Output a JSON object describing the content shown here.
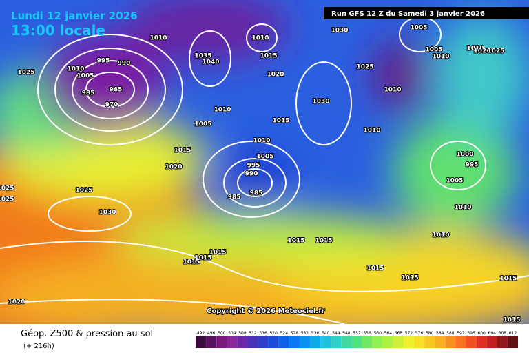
{
  "header": {
    "date": "Lundi 12 janvier 2026",
    "time": "13:00 locale",
    "run": "Run GFS 12 Z du Samedi 3 janvier 2026"
  },
  "copyright": "Copyright © 2026 Meteociel.fr",
  "legend": {
    "title": "Géop. Z500 & pression au sol",
    "lead": "(+ 216h)"
  },
  "colorbar": {
    "values": [
      492,
      496,
      500,
      504,
      508,
      512,
      516,
      520,
      524,
      528,
      532,
      536,
      540,
      544,
      548,
      552,
      556,
      560,
      564,
      568,
      572,
      576,
      580,
      584,
      588,
      592,
      596,
      600,
      604,
      608,
      612
    ],
    "colors": [
      "#3b0a3f",
      "#5a1060",
      "#7a1a7a",
      "#8a2a9a",
      "#6a2aa8",
      "#4b30b8",
      "#2c3ec8",
      "#1b4ed8",
      "#0b62e8",
      "#0a78f0",
      "#0a90f0",
      "#10a8e8",
      "#20c0e0",
      "#30d0c8",
      "#40d8a0",
      "#50e080",
      "#70e860",
      "#90f050",
      "#b0f040",
      "#d0f038",
      "#f0f030",
      "#f8e028",
      "#f8c820",
      "#f8b020",
      "#f89020",
      "#f87020",
      "#f05020",
      "#e03020",
      "#c02020",
      "#901818",
      "#601010"
    ]
  },
  "isobar_labels": [
    "1010",
    "1010",
    "1015",
    "1030",
    "1005",
    "1035",
    "1040",
    "1025",
    "1010",
    "995",
    "990",
    "965",
    "970",
    "985",
    "1005",
    "1020",
    "1025",
    "1005",
    "1010",
    "1010",
    "1020",
    "1025",
    "1010",
    "1030",
    "1010",
    "1005",
    "1015",
    "1010",
    "1015",
    "1010",
    "1005",
    "1020",
    "995",
    "990",
    "985",
    "985",
    "1000",
    "995",
    "1005",
    "1025",
    "1025",
    "1025",
    "1030",
    "1010",
    "1010",
    "1015",
    "1015",
    "1015",
    "1015",
    "1015",
    "1015",
    "1015",
    "1015",
    "1020",
    "1015"
  ]
}
